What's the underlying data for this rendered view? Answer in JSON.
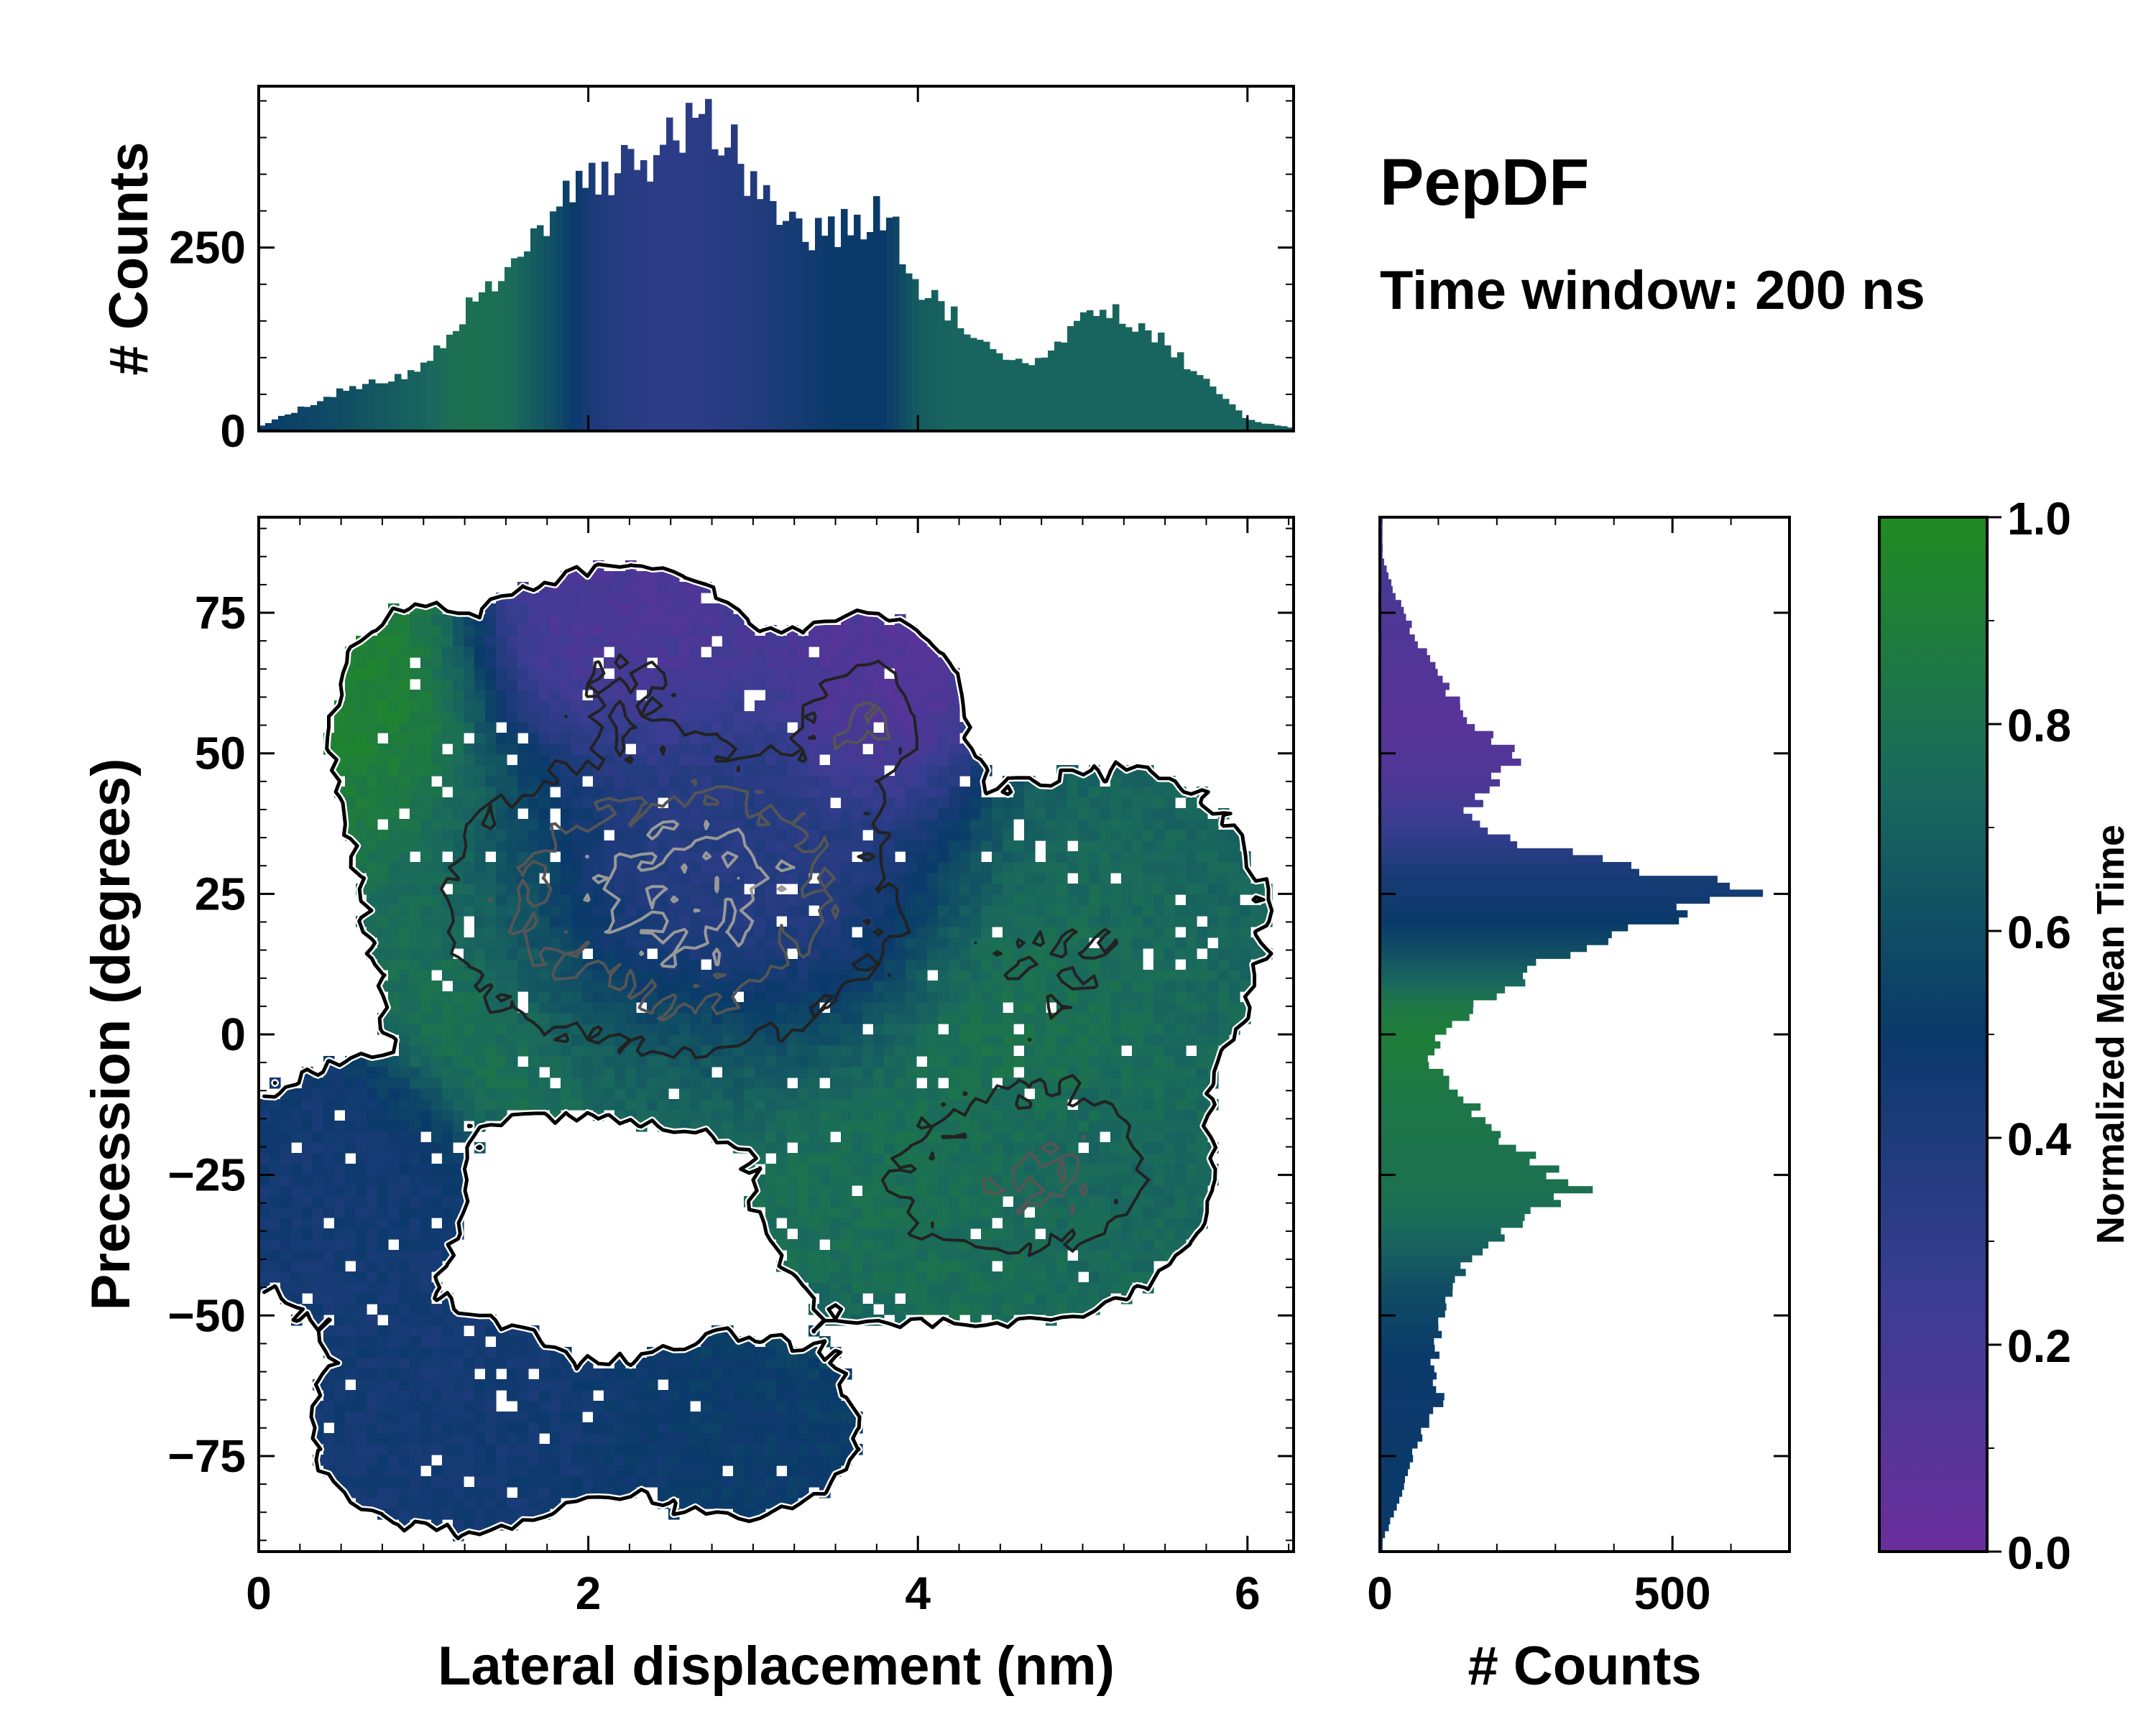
{
  "chart_data": {
    "type": "heatmap",
    "title": "PepDF",
    "subtitle": "Time window: 200 ns",
    "xlabel": "Lateral displacement (nm)",
    "ylabel": "Precession (degrees)",
    "xlim": [
      0,
      6.28
    ],
    "ylim": [
      -92,
      92
    ],
    "xticks": [
      {
        "value": 0,
        "label": "0"
      },
      {
        "value": 2,
        "label": "2"
      },
      {
        "value": 4,
        "label": "4"
      },
      {
        "value": 6,
        "label": "6"
      }
    ],
    "yticks": [
      {
        "value": 75,
        "label": "75"
      },
      {
        "value": 50,
        "label": "50"
      },
      {
        "value": 25,
        "label": "25"
      },
      {
        "value": 0,
        "label": "0"
      },
      {
        "value": -25,
        "label": "−25"
      },
      {
        "value": -50,
        "label": "−50"
      },
      {
        "value": -75,
        "label": "−75"
      }
    ],
    "colorbar": {
      "label": "Normalized Mean Time",
      "range": [
        0,
        1
      ],
      "ticks": [
        "0.0",
        "0.2",
        "0.4",
        "0.6",
        "0.8",
        "1.0"
      ],
      "colors": [
        "#6a2e9c",
        "#3a3d92",
        "#0a3a6a",
        "#1a6a5c",
        "#228b22"
      ]
    },
    "density_peaks": [
      {
        "x": 2.7,
        "y": 27,
        "z": 0.35,
        "sx": 0.75,
        "sy": 16,
        "w": 1.0
      },
      {
        "x": 3.7,
        "y": 57,
        "z": 0.12,
        "sx": 0.28,
        "sy": 9,
        "w": 0.6
      },
      {
        "x": 2.2,
        "y": 65,
        "z": 0.15,
        "sx": 0.5,
        "sy": 11,
        "w": 0.35
      },
      {
        "x": 1.5,
        "y": 20,
        "z": 0.9,
        "sx": 0.45,
        "sy": 18,
        "w": 0.35
      },
      {
        "x": 4.2,
        "y": -28,
        "z": 0.78,
        "sx": 0.65,
        "sy": 13,
        "w": 0.45
      },
      {
        "x": 5.0,
        "y": -25,
        "z": 0.72,
        "sx": 0.4,
        "sy": 11,
        "w": 0.4
      },
      {
        "x": 0.5,
        "y": -28,
        "z": 0.45,
        "sx": 0.45,
        "sy": 13,
        "w": 0.35
      },
      {
        "x": 1.2,
        "y": -70,
        "z": 0.45,
        "sx": 0.55,
        "sy": 12,
        "w": 0.3
      },
      {
        "x": 2.9,
        "y": -70,
        "z": 0.5,
        "sx": 0.5,
        "sy": 11,
        "w": 0.25
      },
      {
        "x": 5.3,
        "y": 20,
        "z": 0.72,
        "sx": 0.55,
        "sy": 18,
        "w": 0.25
      },
      {
        "x": 4.5,
        "y": 8,
        "z": 0.85,
        "sx": 0.6,
        "sy": 16,
        "w": 0.25
      },
      {
        "x": 0.9,
        "y": 55,
        "z": 0.95,
        "sx": 0.35,
        "sy": 15,
        "w": 0.2
      },
      {
        "x": 2.6,
        "y": 1,
        "z": 0.85,
        "sx": 0.6,
        "sy": 10,
        "w": 0.25
      }
    ],
    "density_threshold": 0.09,
    "contour_levels": [
      0.4,
      0.65,
      0.9
    ],
    "top_histogram": {
      "label": "# Counts",
      "ylim": [
        0,
        470
      ],
      "yticks": [
        {
          "value": 0,
          "label": "0"
        },
        {
          "value": 250,
          "label": "250"
        }
      ],
      "x": [
        0.0,
        0.5,
        1.0,
        1.2,
        1.5,
        1.8,
        2.0,
        2.2,
        2.4,
        2.6,
        2.7,
        2.9,
        3.1,
        3.3,
        3.5,
        3.8,
        4.0,
        4.2,
        4.5,
        4.7,
        5.0,
        5.2,
        5.5,
        5.8,
        6.0,
        6.25
      ],
      "counts": [
        5,
        55,
        85,
        150,
        215,
        310,
        340,
        355,
        380,
        410,
        440,
        375,
        305,
        275,
        270,
        300,
        200,
        160,
        110,
        85,
        155,
        160,
        120,
        55,
        15,
        5
      ],
      "mean_time": [
        0.5,
        0.6,
        0.72,
        0.8,
        0.78,
        0.6,
        0.42,
        0.35,
        0.32,
        0.32,
        0.33,
        0.36,
        0.4,
        0.45,
        0.5,
        0.5,
        0.68,
        0.72,
        0.72,
        0.72,
        0.72,
        0.72,
        0.72,
        0.72,
        0.72,
        0.7
      ]
    },
    "right_histogram": {
      "label": "# Counts",
      "xlim": [
        0,
        700
      ],
      "xticks": [
        {
          "value": 0,
          "label": "0"
        },
        {
          "value": 500,
          "label": "500"
        }
      ],
      "y": [
        -90,
        -85,
        -75,
        -65,
        -55,
        -45,
        -38,
        -32,
        -28,
        -20,
        -10,
        -5,
        0,
        5,
        10,
        15,
        20,
        25,
        27,
        30,
        35,
        40,
        45,
        50,
        55,
        65,
        75,
        80,
        85
      ],
      "counts": [
        5,
        25,
        55,
        105,
        90,
        130,
        170,
        250,
        345,
        230,
        135,
        80,
        105,
        165,
        250,
        330,
        500,
        600,
        630,
        400,
        210,
        155,
        200,
        230,
        160,
        90,
        40,
        20,
        5
      ],
      "mean_time": [
        0.5,
        0.5,
        0.5,
        0.48,
        0.52,
        0.6,
        0.7,
        0.78,
        0.8,
        0.82,
        0.85,
        0.88,
        0.9,
        0.85,
        0.72,
        0.6,
        0.5,
        0.45,
        0.45,
        0.4,
        0.3,
        0.22,
        0.15,
        0.12,
        0.1,
        0.12,
        0.15,
        0.2,
        0.2
      ]
    }
  }
}
